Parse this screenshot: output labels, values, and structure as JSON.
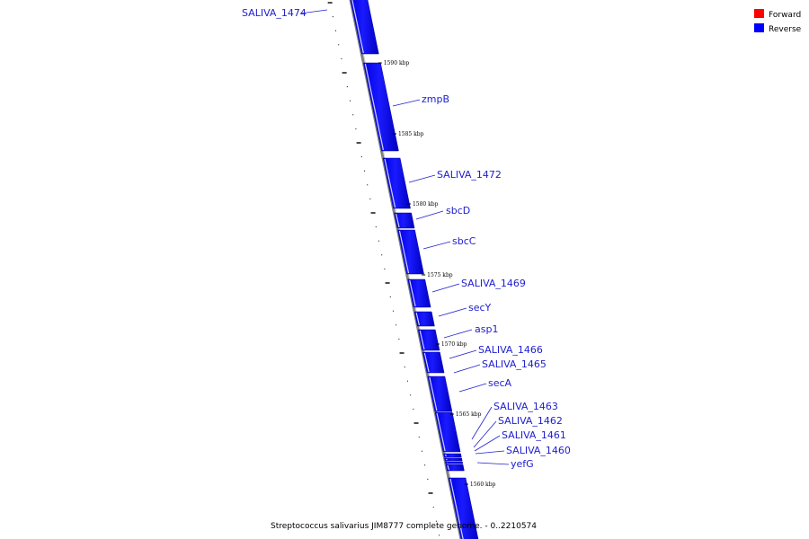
{
  "legend": [
    {
      "label": "Forward",
      "color": "#ff0000"
    },
    {
      "label": "Reverse",
      "color": "#0000ff"
    }
  ],
  "caption": "Streptococcus salivarius JIM8777 complete genome. - 0..2210574",
  "scale_labels": [
    "1590 kbp",
    "1585 kbp",
    "1580 kbp",
    "1575 kbp",
    "1570 kbp",
    "1565 kbp",
    "1560 kbp"
  ],
  "genes": [
    {
      "name": "SALIVA_1474",
      "strand": "reverse"
    },
    {
      "name": "zmpB",
      "strand": "reverse"
    },
    {
      "name": "SALIVA_1472",
      "strand": "reverse"
    },
    {
      "name": "sbcD",
      "strand": "reverse"
    },
    {
      "name": "sbcC",
      "strand": "reverse"
    },
    {
      "name": "SALIVA_1469",
      "strand": "reverse"
    },
    {
      "name": "secY",
      "strand": "reverse"
    },
    {
      "name": "asp1",
      "strand": "reverse"
    },
    {
      "name": "SALIVA_1466",
      "strand": "reverse"
    },
    {
      "name": "SALIVA_1465",
      "strand": "reverse"
    },
    {
      "name": "secA",
      "strand": "reverse"
    },
    {
      "name": "SALIVA_1463",
      "strand": "reverse"
    },
    {
      "name": "SALIVA_1462",
      "strand": "reverse"
    },
    {
      "name": "SALIVA_1461",
      "strand": "reverse"
    },
    {
      "name": "SALIVA_1460",
      "strand": "reverse"
    },
    {
      "name": "yefG",
      "strand": "reverse"
    }
  ],
  "colors": {
    "forward": "#ff0000",
    "reverse": "#0000ff",
    "label": "#2020d0"
  }
}
